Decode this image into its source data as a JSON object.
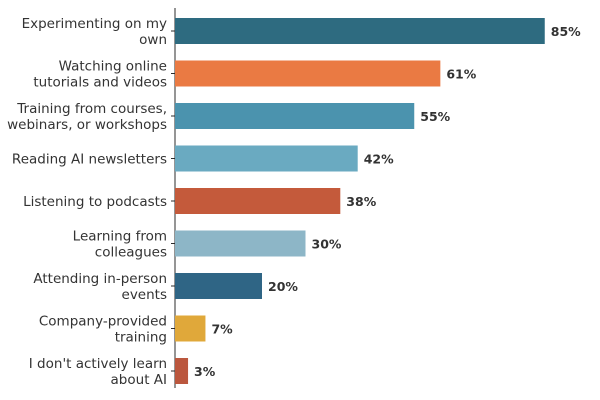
{
  "chart_data": {
    "type": "bar",
    "orientation": "horizontal",
    "title": "",
    "xlabel": "",
    "ylabel": "",
    "xlim": [
      0,
      100
    ],
    "grid": false,
    "legend": "none",
    "categories": [
      [
        "Experimenting on my",
        "own"
      ],
      [
        "Watching online",
        "tutorials and videos"
      ],
      [
        "Training from courses,",
        "webinars, or workshops"
      ],
      [
        "Reading AI newsletters"
      ],
      [
        "Listening to podcasts"
      ],
      [
        "Learning from",
        "colleagues"
      ],
      [
        "Attending in-person",
        "events"
      ],
      [
        "Company-provided",
        "training"
      ],
      [
        "I don't actively learn",
        "about AI"
      ]
    ],
    "values": [
      85,
      61,
      55,
      42,
      38,
      30,
      20,
      7,
      3
    ],
    "value_labels": [
      "85%",
      "61%",
      "55%",
      "42%",
      "38%",
      "30%",
      "20%",
      "7%",
      "3%"
    ],
    "colors": [
      "#2e6b80",
      "#ea7a43",
      "#4b93ae",
      "#6aaac1",
      "#c45a3b",
      "#8db6c7",
      "#2f6585",
      "#e0a83a",
      "#bb573e"
    ]
  }
}
